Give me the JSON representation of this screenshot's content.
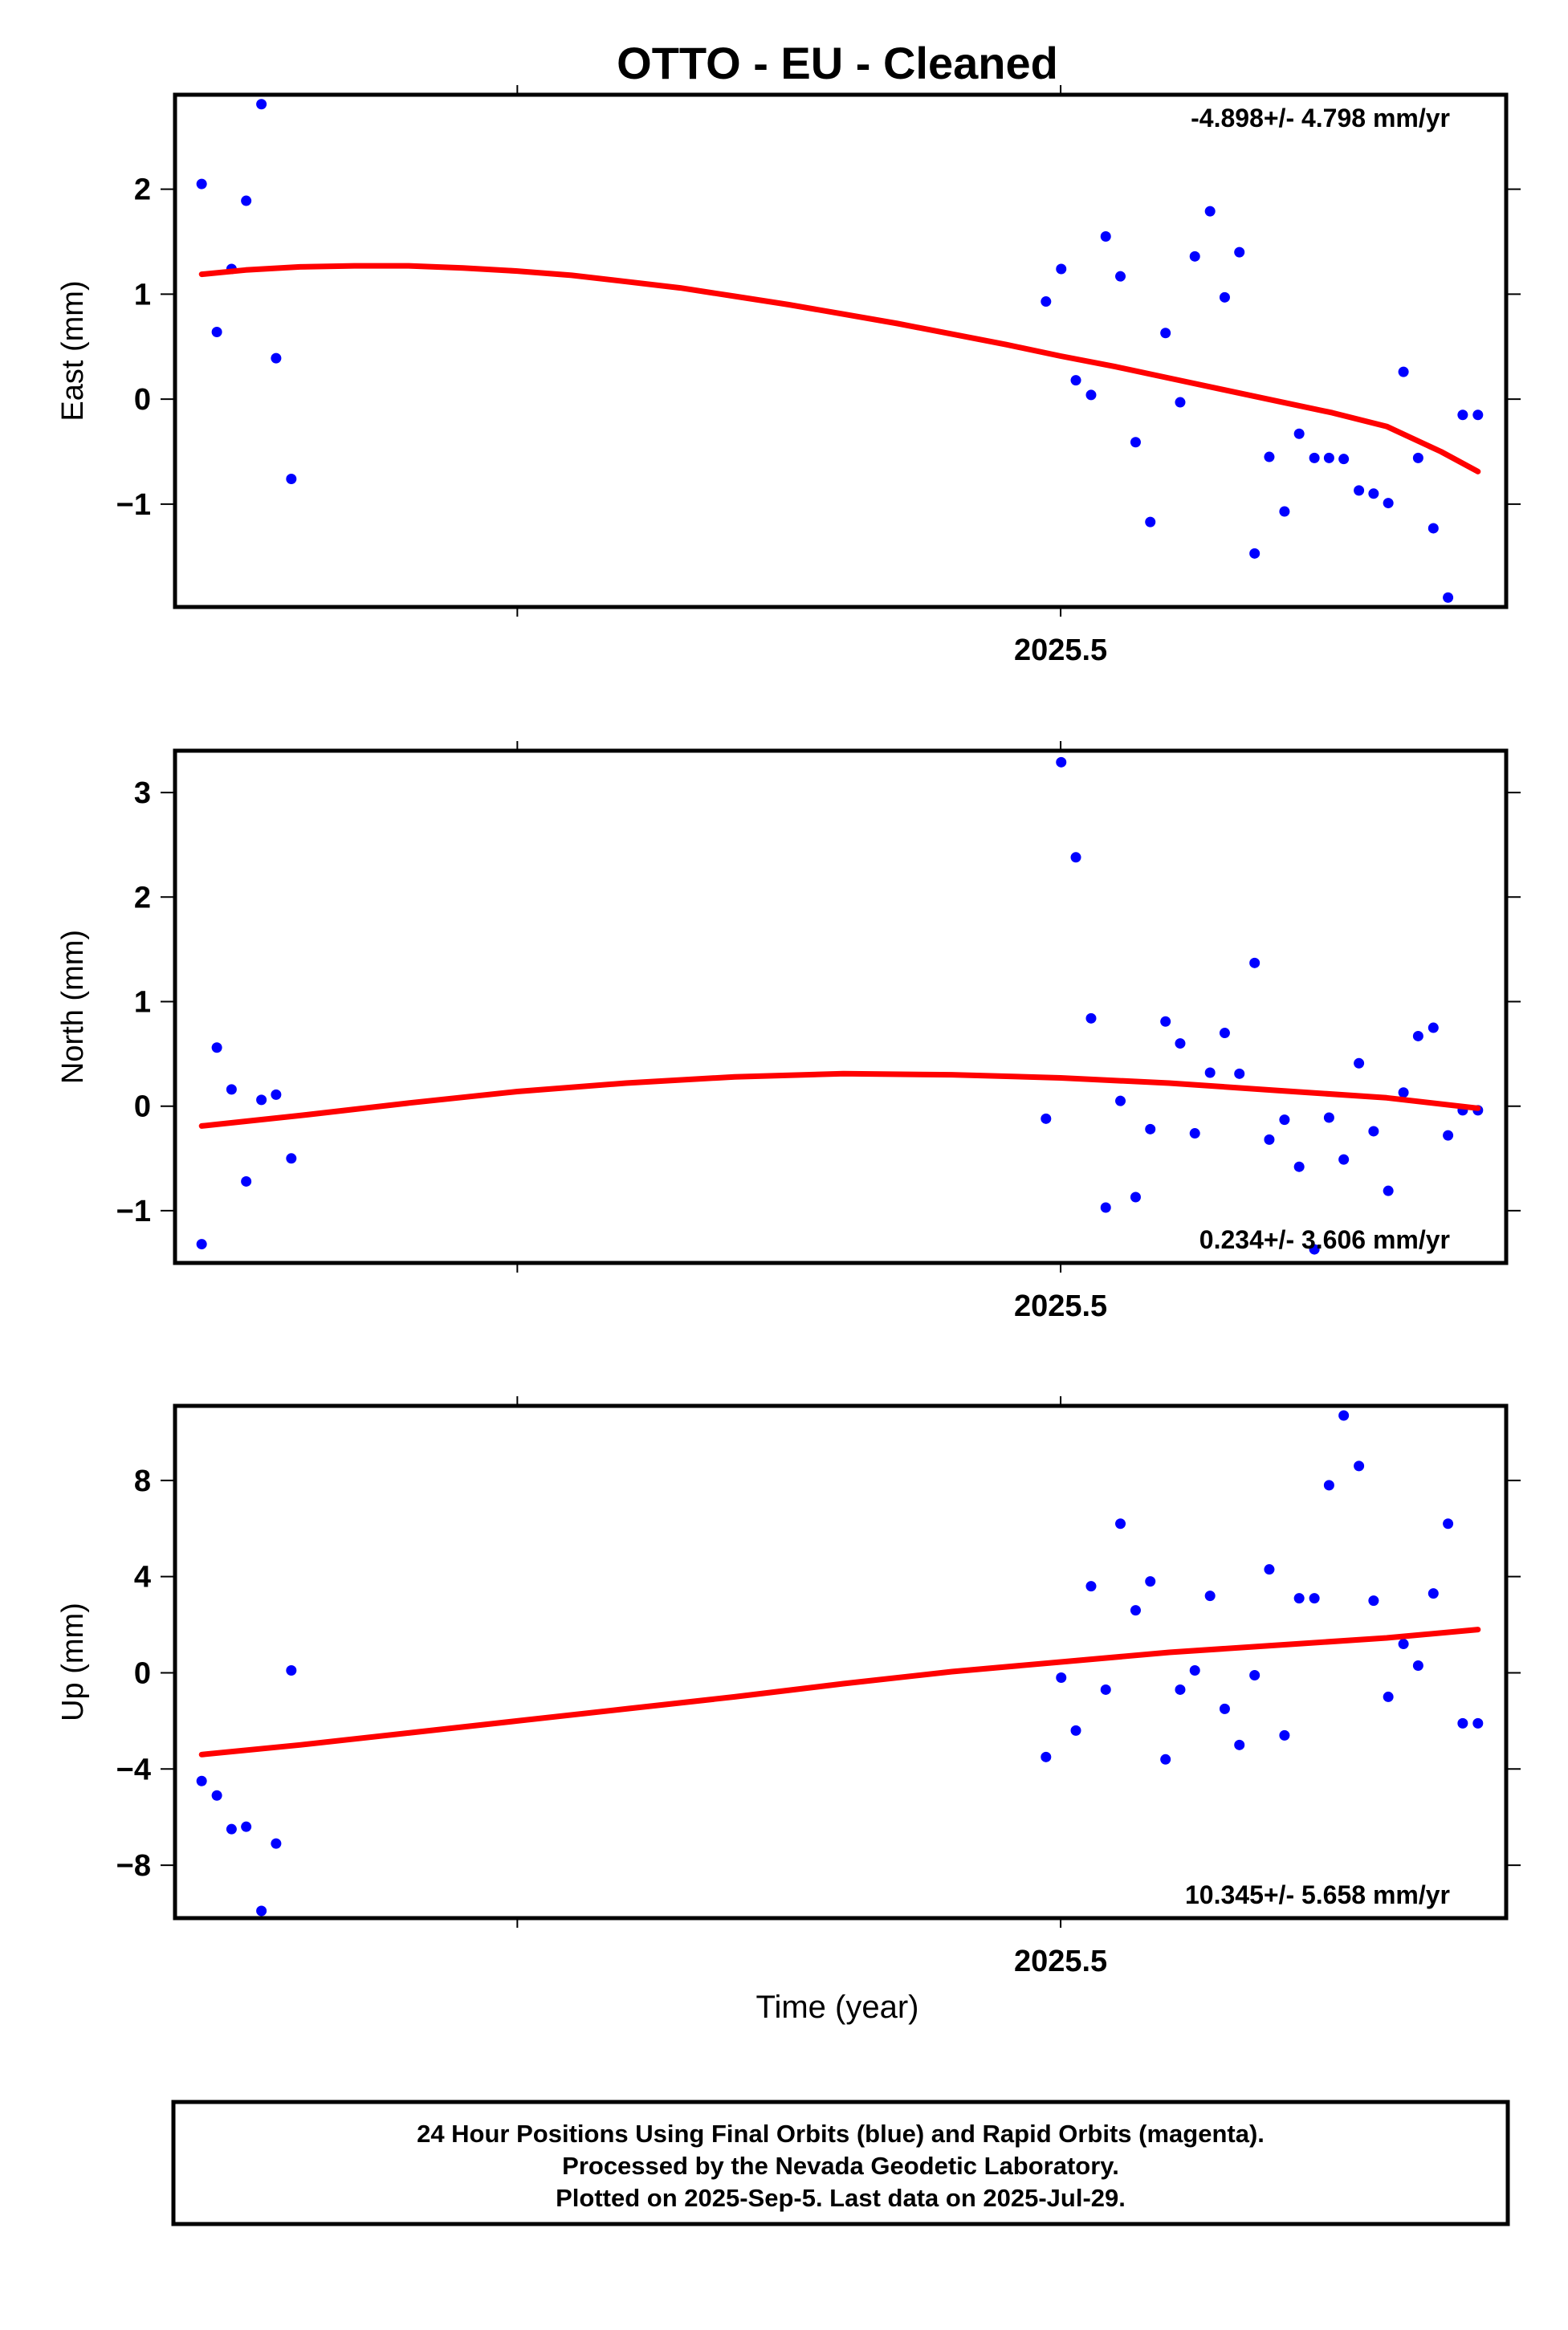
{
  "title": "OTTO  - EU - Cleaned",
  "xlabel": "Time (year)",
  "footer": {
    "line1": "24 Hour Positions Using Final Orbits (blue) and Rapid Orbits (magenta).",
    "line2": "Processed by the Nevada Geodetic Laboratory.",
    "line3": "Plotted on 2025-Sep-5. Last data on 2025-Jul-29."
  },
  "colors": {
    "points": "#0000ff",
    "fit": "#ff0000",
    "frame": "#000000"
  },
  "chart_data": [
    {
      "type": "scatter",
      "ylabel": "East (mm)",
      "rate_label": "-4.898+/- 4.798 mm/yr",
      "rate_placement": "top-right",
      "xlim": [
        2025.337,
        2025.582
      ],
      "ylim": [
        -1.98,
        2.9
      ],
      "xticks": [
        {
          "value": 2025.4,
          "label": ""
        },
        {
          "value": 2025.5,
          "label": "2025.5"
        }
      ],
      "yticks": [
        {
          "value": -1,
          "label": "−1"
        },
        {
          "value": 0,
          "label": "0"
        },
        {
          "value": 1,
          "label": "1"
        },
        {
          "value": 2,
          "label": "2"
        }
      ],
      "points": {
        "x": [
          2025.3419,
          2025.3447,
          2025.3474,
          2025.3501,
          2025.3529,
          2025.3556,
          2025.3584,
          2025.4973,
          2025.5001,
          2025.5028,
          2025.5056,
          2025.5083,
          2025.511,
          2025.5138,
          2025.5165,
          2025.5193,
          2025.522,
          2025.5247,
          2025.5275,
          2025.5302,
          2025.5329,
          2025.5357,
          2025.5384,
          2025.5412,
          2025.5439,
          2025.5467,
          2025.5494,
          2025.5521,
          2025.5549,
          2025.5576,
          2025.5603,
          2025.5631,
          2025.5658,
          2025.5686,
          2025.5713,
          2025.574,
          2025.5768
        ],
        "y": [
          2.05,
          0.64,
          1.24,
          1.89,
          2.81,
          0.39,
          -0.76,
          0.93,
          1.24,
          0.18,
          0.04,
          1.55,
          1.17,
          -0.41,
          -1.17,
          0.63,
          -0.03,
          1.36,
          1.79,
          0.97,
          1.4,
          -1.47,
          -0.55,
          -1.07,
          -0.33,
          -0.56,
          -0.56,
          -0.57,
          -0.87,
          -0.9,
          -0.99,
          0.26,
          -0.56,
          -1.23,
          -1.89,
          -0.15,
          -0.15
        ]
      },
      "fit": {
        "x": [
          2025.3419,
          2025.35,
          2025.36,
          2025.37,
          2025.38,
          2025.39,
          2025.4,
          2025.41,
          2025.42,
          2025.43,
          2025.44,
          2025.45,
          2025.46,
          2025.47,
          2025.48,
          2025.49,
          2025.5,
          2025.51,
          2025.52,
          2025.53,
          2025.54,
          2025.55,
          2025.56,
          2025.57,
          2025.5768
        ],
        "y": [
          1.19,
          1.23,
          1.26,
          1.27,
          1.27,
          1.25,
          1.22,
          1.18,
          1.12,
          1.06,
          0.98,
          0.9,
          0.81,
          0.72,
          0.62,
          0.52,
          0.41,
          0.31,
          0.2,
          0.09,
          -0.02,
          -0.13,
          -0.26,
          -0.5,
          -0.69
        ]
      }
    },
    {
      "type": "scatter",
      "ylabel": "North (mm)",
      "rate_label": "0.234+/- 3.606 mm/yr",
      "rate_placement": "bottom-right",
      "xlim": [
        2025.337,
        2025.582
      ],
      "ylim": [
        -1.5,
        3.4
      ],
      "xticks": [
        {
          "value": 2025.4,
          "label": ""
        },
        {
          "value": 2025.5,
          "label": "2025.5"
        }
      ],
      "yticks": [
        {
          "value": -1,
          "label": "−1"
        },
        {
          "value": 0,
          "label": "0"
        },
        {
          "value": 1,
          "label": "1"
        },
        {
          "value": 2,
          "label": "2"
        },
        {
          "value": 3,
          "label": "3"
        }
      ],
      "points": {
        "x": [
          2025.3419,
          2025.3447,
          2025.3474,
          2025.3501,
          2025.3529,
          2025.3556,
          2025.3584,
          2025.4973,
          2025.5001,
          2025.5028,
          2025.5056,
          2025.5083,
          2025.511,
          2025.5138,
          2025.5165,
          2025.5193,
          2025.522,
          2025.5247,
          2025.5275,
          2025.5302,
          2025.5329,
          2025.5357,
          2025.5384,
          2025.5412,
          2025.5439,
          2025.5467,
          2025.5494,
          2025.5521,
          2025.5549,
          2025.5576,
          2025.5603,
          2025.5631,
          2025.5658,
          2025.5686,
          2025.5713,
          2025.574,
          2025.5768
        ],
        "y": [
          -1.32,
          0.56,
          0.16,
          -0.72,
          0.06,
          0.11,
          -0.5,
          -0.12,
          3.29,
          2.38,
          0.84,
          -0.97,
          0.05,
          -0.87,
          -0.22,
          0.81,
          0.6,
          -0.26,
          0.32,
          0.7,
          0.31,
          1.37,
          -0.32,
          -0.13,
          -0.58,
          -1.37,
          -0.11,
          -0.51,
          0.41,
          -0.24,
          -0.81,
          0.13,
          0.67,
          0.75,
          -0.28,
          -0.04,
          -0.04
        ]
      },
      "fit": {
        "x": [
          2025.3419,
          2025.36,
          2025.38,
          2025.4,
          2025.42,
          2025.44,
          2025.46,
          2025.48,
          2025.5,
          2025.52,
          2025.54,
          2025.56,
          2025.5768
        ],
        "y": [
          -0.19,
          -0.09,
          0.03,
          0.14,
          0.22,
          0.28,
          0.31,
          0.3,
          0.27,
          0.22,
          0.15,
          0.08,
          -0.02
        ]
      }
    },
    {
      "type": "scatter",
      "ylabel": "Up (mm)",
      "rate_label": "10.345+/- 5.658 mm/yr",
      "rate_placement": "bottom-right",
      "xlim": [
        2025.337,
        2025.582
      ],
      "ylim": [
        -10.2,
        11.1
      ],
      "xticks": [
        {
          "value": 2025.4,
          "label": ""
        },
        {
          "value": 2025.5,
          "label": "2025.5"
        }
      ],
      "yticks": [
        {
          "value": -8,
          "label": "−8"
        },
        {
          "value": -4,
          "label": "−4"
        },
        {
          "value": 0,
          "label": "0"
        },
        {
          "value": 4,
          "label": "4"
        },
        {
          "value": 8,
          "label": "8"
        }
      ],
      "points": {
        "x": [
          2025.3419,
          2025.3447,
          2025.3474,
          2025.3501,
          2025.3529,
          2025.3556,
          2025.3584,
          2025.4973,
          2025.5001,
          2025.5028,
          2025.5056,
          2025.5083,
          2025.511,
          2025.5138,
          2025.5165,
          2025.5193,
          2025.522,
          2025.5247,
          2025.5275,
          2025.5302,
          2025.5329,
          2025.5357,
          2025.5384,
          2025.5412,
          2025.5439,
          2025.5467,
          2025.5494,
          2025.5521,
          2025.5549,
          2025.5576,
          2025.5603,
          2025.5631,
          2025.5658,
          2025.5686,
          2025.5713,
          2025.574,
          2025.5768
        ],
        "y": [
          -4.5,
          -5.1,
          -6.5,
          -6.4,
          -9.9,
          -7.1,
          0.1,
          -3.5,
          -0.2,
          -2.4,
          3.6,
          -0.7,
          6.2,
          2.6,
          3.8,
          -3.6,
          -0.7,
          0.1,
          3.2,
          -1.5,
          -3.0,
          -0.1,
          4.3,
          -2.6,
          3.1,
          3.1,
          7.8,
          10.7,
          8.6,
          3.0,
          -1.0,
          1.2,
          0.3,
          3.3,
          6.2,
          -2.1,
          -2.1
        ]
      },
      "fit": {
        "x": [
          2025.3419,
          2025.36,
          2025.38,
          2025.4,
          2025.42,
          2025.44,
          2025.46,
          2025.48,
          2025.5,
          2025.52,
          2025.54,
          2025.56,
          2025.5768
        ],
        "y": [
          -3.4,
          -3.0,
          -2.5,
          -2.0,
          -1.5,
          -1.0,
          -0.45,
          0.05,
          0.45,
          0.85,
          1.15,
          1.45,
          1.8
        ]
      }
    }
  ]
}
